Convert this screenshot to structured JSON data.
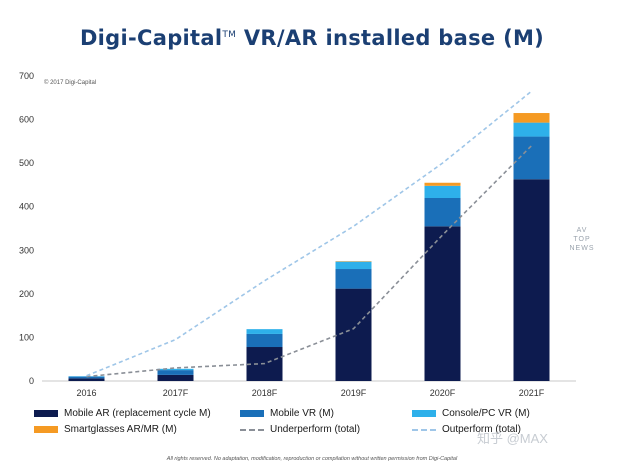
{
  "header": {
    "title_brand": "Digi-Capital",
    "title_tm": "TM",
    "title_rest": "VR/AR installed base (M)"
  },
  "copyright": "© 2017 Digi-Capital",
  "watermark": [
    "AV",
    "TOP",
    "NEWS"
  ],
  "site_watermark": "知乎 @MAX",
  "footer": "All rights reserved. No adaptation, modification, reproduction or compilation without written permission from Digi-Capital",
  "colors": {
    "mobile_ar": "#0d1b4f",
    "mobile_vr": "#1a6fb8",
    "console_pc_vr": "#2eb0ea",
    "smartglasses": "#f59a23",
    "underperform": "#8a8f97",
    "outperform": "#9fc6e8",
    "title": "#1b3f73"
  },
  "chart_data": {
    "type": "bar",
    "stacked": true,
    "title": "VR/AR installed base (M)",
    "categories": [
      "2016",
      "2017F",
      "2018F",
      "2019F",
      "2020F",
      "2021F"
    ],
    "ylim": [
      0,
      700
    ],
    "yticks": [
      0,
      100,
      200,
      300,
      400,
      500,
      600,
      700
    ],
    "grid": false,
    "legend_position": "bottom",
    "series": [
      {
        "name": "Mobile AR (replacement cycle M)",
        "values": [
          6,
          14,
          78,
          212,
          355,
          463
        ]
      },
      {
        "name": "Mobile VR (M)",
        "values": [
          4,
          11,
          30,
          45,
          65,
          98
        ]
      },
      {
        "name": "Console/PC VR (M)",
        "values": [
          1,
          3,
          11,
          17,
          28,
          32
        ]
      },
      {
        "name": "Smartglasses AR/MR (M)",
        "values": [
          0,
          0,
          0,
          1,
          7,
          22
        ]
      }
    ],
    "lines": [
      {
        "name": "Underperform (total)",
        "values": [
          10,
          30,
          40,
          120,
          335,
          540
        ]
      },
      {
        "name": "Outperform (total)",
        "values": [
          12,
          95,
          230,
          355,
          500,
          665
        ]
      }
    ]
  }
}
